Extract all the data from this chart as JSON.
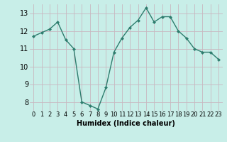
{
  "x": [
    0,
    1,
    2,
    3,
    4,
    5,
    6,
    7,
    8,
    9,
    10,
    11,
    12,
    13,
    14,
    15,
    16,
    17,
    18,
    19,
    20,
    21,
    22,
    23
  ],
  "y": [
    11.7,
    11.9,
    12.1,
    12.5,
    11.5,
    11.0,
    8.0,
    7.8,
    7.6,
    8.8,
    10.8,
    11.6,
    12.2,
    12.6,
    13.3,
    12.5,
    12.8,
    12.8,
    12.0,
    11.6,
    11.0,
    10.8,
    10.8,
    10.4
  ],
  "xlabel": "Humidex (Indice chaleur)",
  "xlim": [
    -0.5,
    23.5
  ],
  "ylim": [
    7.5,
    13.5
  ],
  "yticks": [
    8,
    9,
    10,
    11,
    12,
    13
  ],
  "xticks": [
    0,
    1,
    2,
    3,
    4,
    5,
    6,
    7,
    8,
    9,
    10,
    11,
    12,
    13,
    14,
    15,
    16,
    17,
    18,
    19,
    20,
    21,
    22,
    23
  ],
  "line_color": "#2e7d6e",
  "marker": "D",
  "marker_size": 2.0,
  "bg_color": "#c8eee8",
  "grid_color": "#c8b8c0",
  "line_width": 1.0,
  "tick_fontsize": 6.0,
  "xlabel_fontsize": 7.0
}
